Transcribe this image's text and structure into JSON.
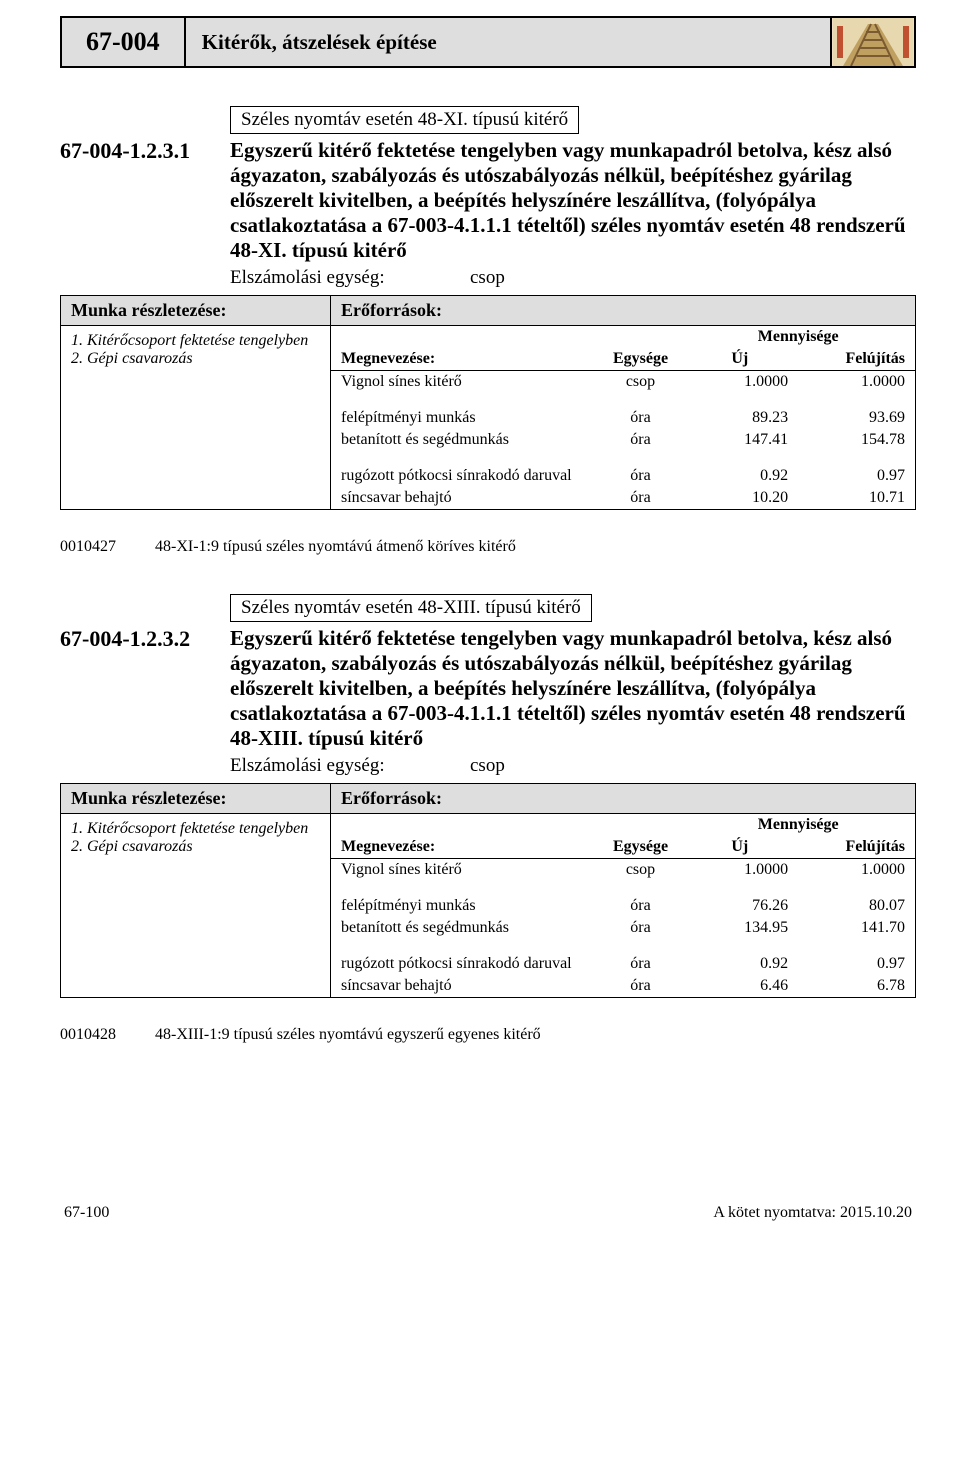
{
  "header": {
    "code": "67-004",
    "title": "Kitérők, átszelések építése"
  },
  "sections": [
    {
      "variant": "Széles nyomtáv esetén 48-XI. típusú kitérő",
      "item_code": "67-004-1.2.3.1",
      "item_desc": "Egyszerű kitérő fektetése tengelyben vagy munkapadról betolva, kész alsó ágyazaton, szabályozás és utószabályozás nélkül, beépítéshez gyárilag előszerelt kivitelben, a beépítés helyszínére leszállítva, (folyópálya csatlakoztatása a 67-003-4.1.1.1 tételtől) széles nyomtáv esetén 48 rendszerű 48-XI. típusú kitérő",
      "unit_label": "Elszámolási egység:",
      "unit_value": "csop",
      "left_header": "Munka részletezése:",
      "right_header": "Erőforrások:",
      "left_items": [
        "1. Kitérőcsoport fektetése tengelyben",
        "2. Gépi csavarozás"
      ],
      "col_name": "Megnevezése:",
      "col_unit": "Egysége",
      "col_qty": "Mennyisége",
      "col_new": "Új",
      "col_renew": "Felújítás",
      "rows": [
        {
          "name": "Vignol sínes kitérő",
          "unit": "csop",
          "new": "1.0000",
          "renew": "1.0000",
          "group": 0
        },
        {
          "name": "felépítményi munkás",
          "unit": "óra",
          "new": "89.23",
          "renew": "93.69",
          "group": 1
        },
        {
          "name": "betanított és segédmunkás",
          "unit": "óra",
          "new": "147.41",
          "renew": "154.78",
          "group": 1
        },
        {
          "name": "rugózott pótkocsi sínrakodó daruval",
          "unit": "óra",
          "new": "0.92",
          "renew": "0.97",
          "group": 2
        },
        {
          "name": "síncsavar behajtó",
          "unit": "óra",
          "new": "10.20",
          "renew": "10.71",
          "group": 2
        }
      ],
      "sub_code": "0010427",
      "sub_text": "48-XI-1:9 típusú széles nyomtávú átmenő köríves kitérő"
    },
    {
      "variant": "Széles nyomtáv esetén 48-XIII. típusú kitérő",
      "item_code": "67-004-1.2.3.2",
      "item_desc": "Egyszerű kitérő fektetése tengelyben vagy munkapadról betolva, kész alsó ágyazaton, szabályozás és utószabályozás nélkül, beépítéshez gyárilag előszerelt kivitelben, a beépítés helyszínére leszállítva, (folyópálya csatlakoztatása a 67-003-4.1.1.1 tételtől) széles nyomtáv esetén 48 rendszerű 48-XIII. típusú kitérő",
      "unit_label": "Elszámolási egység:",
      "unit_value": "csop",
      "left_header": "Munka részletezése:",
      "right_header": "Erőforrások:",
      "left_items": [
        "1. Kitérőcsoport fektetése tengelyben",
        "2. Gépi csavarozás"
      ],
      "col_name": "Megnevezése:",
      "col_unit": "Egysége",
      "col_qty": "Mennyisége",
      "col_new": "Új",
      "col_renew": "Felújítás",
      "rows": [
        {
          "name": "Vignol sínes kitérő",
          "unit": "csop",
          "new": "1.0000",
          "renew": "1.0000",
          "group": 0
        },
        {
          "name": "felépítményi munkás",
          "unit": "óra",
          "new": "76.26",
          "renew": "80.07",
          "group": 1
        },
        {
          "name": "betanított és segédmunkás",
          "unit": "óra",
          "new": "134.95",
          "renew": "141.70",
          "group": 1
        },
        {
          "name": "rugózott pótkocsi sínrakodó daruval",
          "unit": "óra",
          "new": "0.92",
          "renew": "0.97",
          "group": 2
        },
        {
          "name": "síncsavar behajtó",
          "unit": "óra",
          "new": "6.46",
          "renew": "6.78",
          "group": 2
        }
      ],
      "sub_code": "0010428",
      "sub_text": "48-XIII-1:9 típusú széles nyomtávú egyszerű egyenes kitérő"
    }
  ],
  "footer": {
    "left": "67-100",
    "right": "A kötet nyomtatva: 2015.10.20"
  },
  "colors": {
    "gray": "#dedede",
    "border": "#000000",
    "bg": "#ffffff"
  }
}
